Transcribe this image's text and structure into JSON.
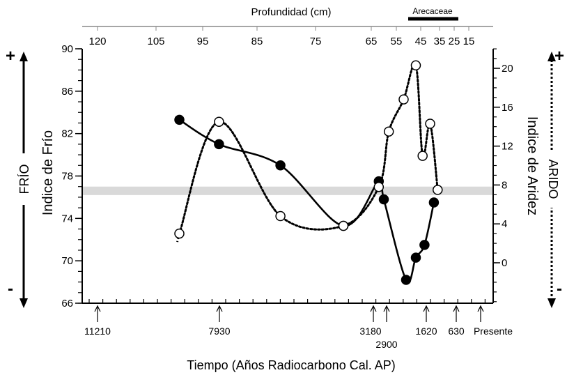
{
  "chart_data": {
    "type": "line",
    "top_axis_title": "Profundidad (cm)",
    "top_ticks": [
      "120",
      "105",
      "95",
      "85",
      "75",
      "65",
      "55",
      "45",
      "35",
      "25",
      "15"
    ],
    "arecaceae_label": "Arecaceae",
    "xlabel": "Tiempo (Años Radiocarbono Cal. AP)",
    "time_labels": [
      "11210",
      "7930",
      "3180",
      "2900",
      "1620",
      "630",
      "Presente"
    ],
    "left_axis": {
      "label": "Indice de Frío",
      "ylim": [
        66,
        90
      ],
      "ticks": [
        66,
        70,
        74,
        78,
        82,
        86,
        90
      ]
    },
    "right_axis": {
      "label": "Indice de Aridez",
      "ylim": [
        -5,
        22
      ],
      "ticks": [
        0,
        4,
        8,
        12,
        16,
        20
      ]
    },
    "left_indicator": {
      "plus": "+",
      "label": "FRÍO",
      "minus": "-"
    },
    "right_indicator": {
      "plus": "+",
      "label": "ARIDO",
      "minus": "-"
    },
    "reference_band": {
      "axis": "left",
      "range": [
        76.2,
        77.0
      ]
    },
    "series": [
      {
        "axis": "left",
        "marker": "filled-circle",
        "line": "solid",
        "depth_cm": [
          100,
          92,
          81,
          70,
          62,
          60,
          51,
          47,
          43,
          38
        ],
        "values": [
          83.3,
          81.0,
          79.0,
          73.3,
          77.5,
          75.8,
          68.2,
          70.3,
          71.5,
          75.5
        ]
      },
      {
        "axis": "right",
        "marker": "open-circle",
        "line": "dotted",
        "depth_cm": [
          100,
          92,
          81,
          70,
          62,
          58,
          52,
          47,
          44,
          40,
          36
        ],
        "values": [
          3.0,
          14.5,
          4.8,
          3.8,
          7.8,
          13.5,
          16.8,
          20.3,
          11.0,
          14.3,
          7.5
        ]
      }
    ]
  }
}
